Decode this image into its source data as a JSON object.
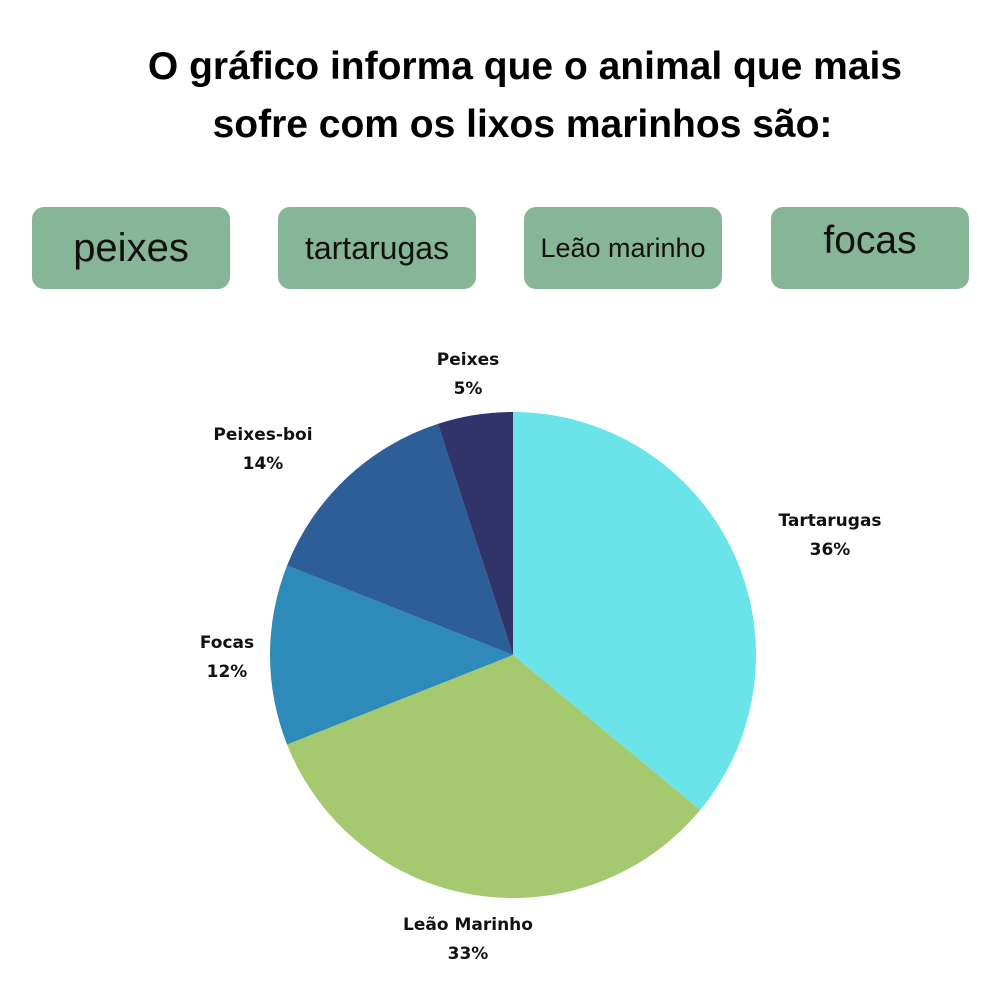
{
  "question": {
    "line1": "O gráfico informa que o animal que mais",
    "line2": "sofre com os lixos marinhos são:"
  },
  "options": [
    {
      "label": "peixes"
    },
    {
      "label": "tartarugas"
    },
    {
      "label": "Leão marinho"
    },
    {
      "label": "focas"
    }
  ],
  "colors": {
    "option_bg": "#87b598"
  },
  "chart_data": {
    "type": "pie",
    "title": "",
    "slices": [
      {
        "label": "Tartarugas",
        "value": 36,
        "value_label": "36%",
        "color": "#6ae4e9"
      },
      {
        "label": "Leão Marinho",
        "value": 33,
        "value_label": "33%",
        "color": "#a5c96f"
      },
      {
        "label": "Focas",
        "value": 12,
        "value_label": "12%",
        "color": "#2e8ab9"
      },
      {
        "label": "Peixes-boi",
        "value": 14,
        "value_label": "14%",
        "color": "#2e5e98"
      },
      {
        "label": "Peixes",
        "value": 5,
        "value_label": "5%",
        "color": "#30346a"
      }
    ],
    "start": "12 o'clock",
    "direction": "clockwise",
    "legend": "none"
  }
}
